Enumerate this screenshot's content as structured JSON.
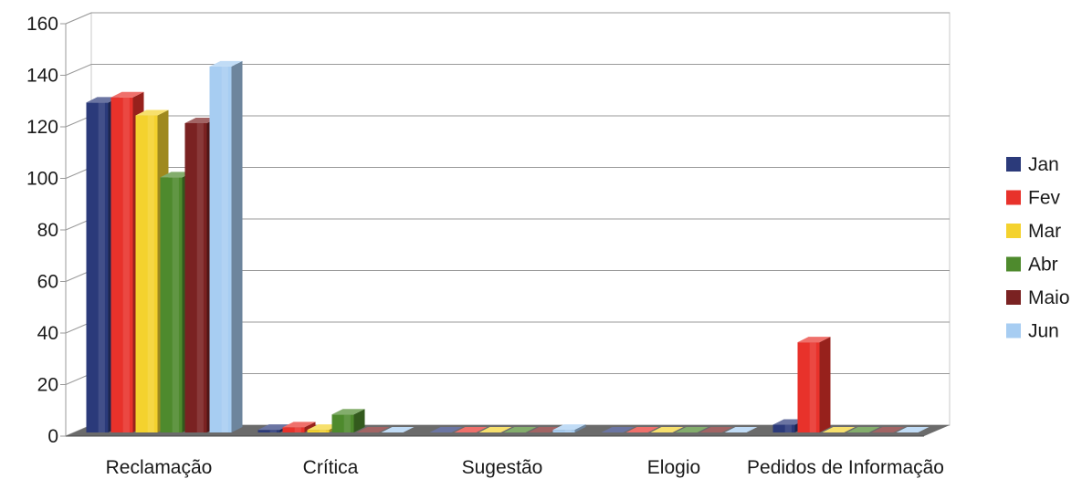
{
  "chart_data": {
    "type": "bar",
    "title": "",
    "xlabel": "",
    "ylabel": "",
    "categories": [
      "Reclamação",
      "Crítica",
      "Sugestão",
      "Elogio",
      "Pedidos de Informação"
    ],
    "series": [
      {
        "name": "Jan",
        "color": "#2b3a7a",
        "values": [
          128,
          1,
          0,
          0,
          3
        ]
      },
      {
        "name": "Fev",
        "color": "#e8322b",
        "values": [
          130,
          2,
          0,
          0,
          35
        ]
      },
      {
        "name": "Mar",
        "color": "#f4d22e",
        "values": [
          123,
          1,
          0,
          0,
          0
        ]
      },
      {
        "name": "Abr",
        "color": "#4e8a2d",
        "values": [
          99,
          7,
          0,
          0,
          0
        ]
      },
      {
        "name": "Maio",
        "color": "#7a2222",
        "values": [
          120,
          0,
          0,
          0,
          0
        ]
      },
      {
        "name": "Jun",
        "color": "#a7cdf2",
        "values": [
          142,
          0,
          1,
          0,
          0
        ]
      }
    ],
    "ylim": [
      0,
      160
    ],
    "yticks": [
      0,
      20,
      40,
      60,
      80,
      100,
      120,
      140,
      160
    ],
    "grid": true,
    "legend_position": "right",
    "style": "3d-columns"
  }
}
